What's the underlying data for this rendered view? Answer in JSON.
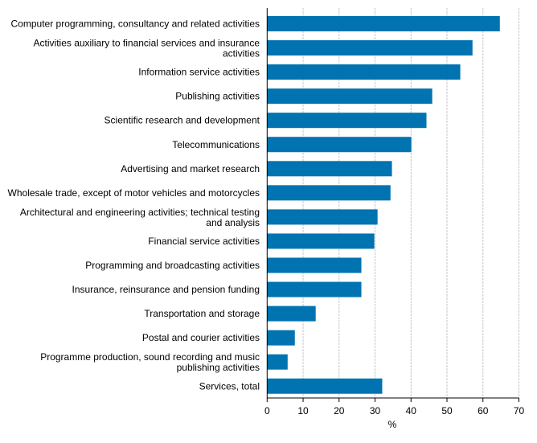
{
  "chart_data": {
    "type": "bar",
    "orientation": "horizontal",
    "categories": [
      [
        "Computer programming, consultancy and related activities"
      ],
      [
        "Activities auxiliary to financial services and insurance",
        "activities"
      ],
      [
        "Information service activities"
      ],
      [
        "Publishing activities"
      ],
      [
        "Scientific research and development"
      ],
      [
        "Telecommunications"
      ],
      [
        "Advertising and market research"
      ],
      [
        "Wholesale trade, except of motor vehicles and motorcycles"
      ],
      [
        "Architectural and engineering activities; technical testing",
        "and analysis"
      ],
      [
        "Financial service activities"
      ],
      [
        "Programming and broadcasting activities"
      ],
      [
        "Insurance, reinsurance and pension funding"
      ],
      [
        "Transportation and storage"
      ],
      [
        "Postal and courier activities"
      ],
      [
        "Programme production, sound recording and music",
        "publishing activities"
      ],
      [
        "Services, total"
      ]
    ],
    "values": [
      64.7,
      57.1,
      53.7,
      45.9,
      44.3,
      40.1,
      34.7,
      34.3,
      30.7,
      29.8,
      26.2,
      26.2,
      13.5,
      7.7,
      5.7,
      32.0
    ],
    "xlabel": "%",
    "xlim": [
      0,
      70
    ],
    "xticks": [
      "0",
      "10",
      "20",
      "30",
      "40",
      "50",
      "60",
      "70"
    ],
    "grid": "vertical dashed",
    "bar_color": "#0073b0"
  }
}
